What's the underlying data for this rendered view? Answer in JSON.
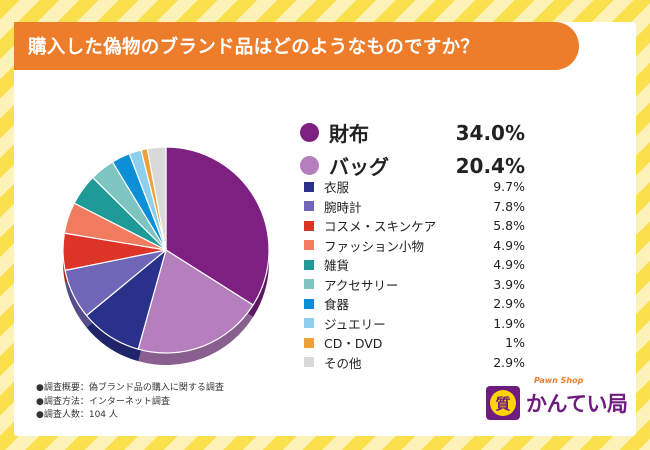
{
  "title": "購入した偽物のブランド品はどのようなものですか？",
  "colors": {
    "title_bg": "#ee7d2b",
    "stripe_yellow": "#fbe04e",
    "logo_purple": "#6e1c7e"
  },
  "chart_data": {
    "type": "pie",
    "title": "購入した偽物のブランド品はどのようなものですか？",
    "start": "top, clockwise",
    "slices": [
      {
        "label": "財布",
        "value": 34.0,
        "display": "34.0%",
        "color": "#7d2082",
        "tier": "major"
      },
      {
        "label": "バッグ",
        "value": 20.4,
        "display": "20.4%",
        "color": "#b57fbd",
        "tier": "major"
      },
      {
        "label": "衣服",
        "value": 9.7,
        "display": "9.7%",
        "color": "#29318a",
        "tier": "minor"
      },
      {
        "label": "腕時計",
        "value": 7.8,
        "display": "7.8%",
        "color": "#6f66b7",
        "tier": "minor"
      },
      {
        "label": "コスメ・スキンケア",
        "value": 5.8,
        "display": "5.8%",
        "color": "#dd3428",
        "tier": "minor"
      },
      {
        "label": "ファッション小物",
        "value": 4.9,
        "display": "4.9%",
        "color": "#f07b5e",
        "tier": "minor"
      },
      {
        "label": "雑貨",
        "value": 4.9,
        "display": "4.9%",
        "color": "#1f9a96",
        "tier": "minor"
      },
      {
        "label": "アクセサリー",
        "value": 3.9,
        "display": "3.9%",
        "color": "#7ec4c0",
        "tier": "minor"
      },
      {
        "label": "食器",
        "value": 2.9,
        "display": "2.9%",
        "color": "#0d8fd8",
        "tier": "minor"
      },
      {
        "label": "ジュエリー",
        "value": 1.9,
        "display": "1.9%",
        "color": "#8ecfee",
        "tier": "minor"
      },
      {
        "label": "CD・DVD",
        "value": 1.0,
        "display": "1%",
        "color": "#eea03b",
        "tier": "minor"
      },
      {
        "label": "その他",
        "value": 2.9,
        "display": "2.9%",
        "color": "#d9d9d9",
        "tier": "minor"
      }
    ]
  },
  "survey_notes": [
    "●調査概要：偽ブランド品の購入に関する調査",
    "●調査方法：インターネット調査",
    "●調査人数：104 人"
  ],
  "logo": {
    "tagline": "Pawn Shop",
    "name": "かんてい局",
    "mark_char": "質",
    "registered": "®"
  }
}
